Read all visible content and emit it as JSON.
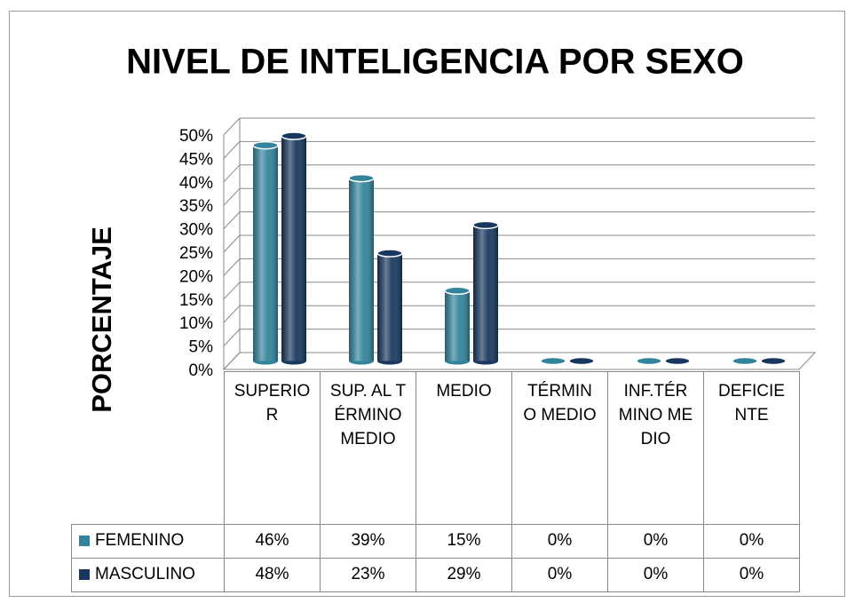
{
  "chart_data": {
    "type": "bar",
    "title": "NIVEL DE INTELIGENCIA POR SEXO",
    "y_label": "PORCENTAJE",
    "categories": [
      "SUPERIOR",
      "SUP. AL TÉRMINO MEDIO",
      "MEDIO",
      "TÉRMINO MEDIO",
      "INF.TÉRMINO MEDIO",
      "DEFICIENTE"
    ],
    "series": [
      {
        "name": "FEMENINO",
        "color": "#31849b",
        "values": [
          46,
          39,
          15,
          0,
          0,
          0
        ],
        "value_labels": [
          "46%",
          "39%",
          "15%",
          "0%",
          "0%",
          "0%"
        ]
      },
      {
        "name": "MASCULINO",
        "color": "#17375e",
        "values": [
          48,
          23,
          29,
          0,
          0,
          0
        ],
        "value_labels": [
          "48%",
          "23%",
          "29%",
          "0%",
          "0%",
          "0%"
        ]
      }
    ],
    "ylim": [
      0,
      50
    ],
    "yticks": [
      {
        "value": 0,
        "label": "0%"
      },
      {
        "value": 5,
        "label": "5%"
      },
      {
        "value": 10,
        "label": "10%"
      },
      {
        "value": 15,
        "label": "15%"
      },
      {
        "value": 20,
        "label": "20%"
      },
      {
        "value": 25,
        "label": "25%"
      },
      {
        "value": 30,
        "label": "30%"
      },
      {
        "value": 35,
        "label": "35%"
      },
      {
        "value": 40,
        "label": "40%"
      },
      {
        "value": 45,
        "label": "45%"
      },
      {
        "value": 50,
        "label": "50%"
      }
    ],
    "grid": true
  }
}
